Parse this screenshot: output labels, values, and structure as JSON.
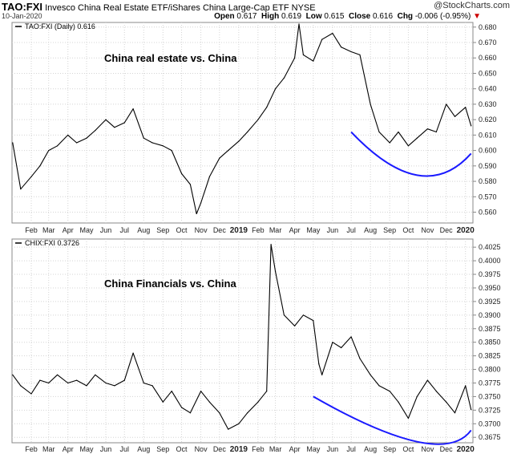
{
  "header": {
    "symbol": "TAO:FXI",
    "description": "Invesco China Real Estate ETF/iShares China Large-Cap ETF  NYSE",
    "date": "10-Jan-2020",
    "open_label": "Open",
    "open": "0.617",
    "high_label": "High",
    "high": "0.619",
    "low_label": "Low",
    "low": "0.615",
    "close_label": "Close",
    "close": "0.616",
    "chg_label": "Chg",
    "chg": "-0.006 (-0.95%)",
    "chg_arrow": "▼",
    "source": "@StockCharts.com"
  },
  "colors": {
    "series": "#000000",
    "curve": "#1a1aff",
    "grid": "#d4d4d4",
    "down": "#cc0000"
  },
  "chart_data": [
    {
      "type": "line",
      "legend": "TAO:FXI (Daily) 0.616",
      "annotation": "China real estate vs. China",
      "y_ticks": [
        "0.560",
        "0.570",
        "0.580",
        "0.590",
        "0.600",
        "0.610",
        "0.620",
        "0.630",
        "0.640",
        "0.650",
        "0.660",
        "0.670",
        "0.680"
      ],
      "ylim": [
        0.553,
        0.683
      ],
      "x_labels": [
        "Feb",
        "Mar",
        "Apr",
        "May",
        "Jun",
        "Jul",
        "Aug",
        "Sep",
        "Oct",
        "Nov",
        "Dec",
        "2019",
        "Feb",
        "Mar",
        "Apr",
        "May",
        "Jun",
        "Jul",
        "Aug",
        "Sep",
        "Oct",
        "Nov",
        "Dec",
        "2020"
      ],
      "x": [
        "2018-01-02",
        "2018-01-15",
        "2018-02-01",
        "2018-02-15",
        "2018-03-01",
        "2018-03-15",
        "2018-04-01",
        "2018-04-15",
        "2018-05-01",
        "2018-05-15",
        "2018-06-01",
        "2018-06-15",
        "2018-07-01",
        "2018-07-15",
        "2018-08-01",
        "2018-08-15",
        "2018-09-01",
        "2018-09-15",
        "2018-10-01",
        "2018-10-15",
        "2018-10-25",
        "2018-11-01",
        "2018-11-15",
        "2018-12-01",
        "2018-12-15",
        "2019-01-01",
        "2019-01-15",
        "2019-02-01",
        "2019-02-15",
        "2019-03-01",
        "2019-03-15",
        "2019-04-01",
        "2019-04-08",
        "2019-04-15",
        "2019-05-01",
        "2019-05-15",
        "2019-06-01",
        "2019-06-15",
        "2019-07-01",
        "2019-07-15",
        "2019-08-01",
        "2019-08-15",
        "2019-09-01",
        "2019-09-15",
        "2019-10-01",
        "2019-10-15",
        "2019-11-01",
        "2019-11-15",
        "2019-12-01",
        "2019-12-15",
        "2020-01-01",
        "2020-01-10"
      ],
      "values": [
        0.605,
        0.575,
        0.583,
        0.59,
        0.6,
        0.603,
        0.61,
        0.605,
        0.608,
        0.613,
        0.62,
        0.615,
        0.618,
        0.627,
        0.608,
        0.605,
        0.603,
        0.6,
        0.585,
        0.578,
        0.559,
        0.566,
        0.583,
        0.595,
        0.6,
        0.606,
        0.612,
        0.62,
        0.628,
        0.64,
        0.647,
        0.66,
        0.682,
        0.662,
        0.658,
        0.672,
        0.676,
        0.667,
        0.664,
        0.662,
        0.63,
        0.612,
        0.605,
        0.612,
        0.603,
        0.608,
        0.614,
        0.612,
        0.63,
        0.622,
        0.628,
        0.616
      ],
      "trend_curve": {
        "x": [
          "2019-07-01",
          "2019-10-15",
          "2020-01-10"
        ],
        "values": [
          0.612,
          0.584,
          0.598
        ]
      }
    },
    {
      "type": "line",
      "legend": "CHIX:FXI 0.3726",
      "annotation": "China Financials vs. China",
      "y_ticks": [
        "0.3675",
        "0.3700",
        "0.3725",
        "0.3750",
        "0.3775",
        "0.3800",
        "0.3825",
        "0.3850",
        "0.3875",
        "0.3900",
        "0.3925",
        "0.3950",
        "0.3975",
        "0.4000",
        "0.4025"
      ],
      "ylim": [
        0.3665,
        0.404
      ],
      "x_labels": [
        "Feb",
        "Mar",
        "Apr",
        "May",
        "Jun",
        "Jul",
        "Aug",
        "Sep",
        "Oct",
        "Nov",
        "Dec",
        "2019",
        "Feb",
        "Mar",
        "Apr",
        "May",
        "Jun",
        "Jul",
        "Aug",
        "Sep",
        "Oct",
        "Nov",
        "Dec",
        "2020"
      ],
      "x": [
        "2018-01-02",
        "2018-01-15",
        "2018-02-01",
        "2018-02-15",
        "2018-03-01",
        "2018-03-15",
        "2018-04-01",
        "2018-04-15",
        "2018-05-01",
        "2018-05-15",
        "2018-06-01",
        "2018-06-15",
        "2018-07-01",
        "2018-07-15",
        "2018-08-01",
        "2018-08-15",
        "2018-09-01",
        "2018-09-15",
        "2018-10-01",
        "2018-10-15",
        "2018-11-01",
        "2018-11-15",
        "2018-12-01",
        "2018-12-15",
        "2019-01-01",
        "2019-01-15",
        "2019-02-01",
        "2019-02-15",
        "2019-02-22",
        "2019-03-01",
        "2019-03-15",
        "2019-04-01",
        "2019-04-15",
        "2019-05-01",
        "2019-05-10",
        "2019-05-15",
        "2019-06-01",
        "2019-06-15",
        "2019-07-01",
        "2019-07-15",
        "2019-08-01",
        "2019-08-15",
        "2019-09-01",
        "2019-09-15",
        "2019-10-01",
        "2019-10-15",
        "2019-11-01",
        "2019-11-15",
        "2019-12-01",
        "2019-12-15",
        "2020-01-01",
        "2020-01-10"
      ],
      "values": [
        0.379,
        0.377,
        0.3755,
        0.378,
        0.3775,
        0.379,
        0.3775,
        0.378,
        0.377,
        0.379,
        0.3775,
        0.377,
        0.378,
        0.383,
        0.3775,
        0.377,
        0.374,
        0.376,
        0.373,
        0.372,
        0.376,
        0.374,
        0.372,
        0.369,
        0.37,
        0.372,
        0.374,
        0.376,
        0.403,
        0.398,
        0.39,
        0.388,
        0.39,
        0.389,
        0.381,
        0.379,
        0.385,
        0.384,
        0.386,
        0.382,
        0.379,
        0.377,
        0.376,
        0.374,
        0.371,
        0.375,
        0.378,
        0.376,
        0.374,
        0.372,
        0.377,
        0.3726
      ],
      "trend_curve": {
        "x": [
          "2019-05-01",
          "2019-10-15",
          "2020-01-10"
        ],
        "values": [
          0.375,
          0.3667,
          0.3688
        ]
      }
    }
  ]
}
